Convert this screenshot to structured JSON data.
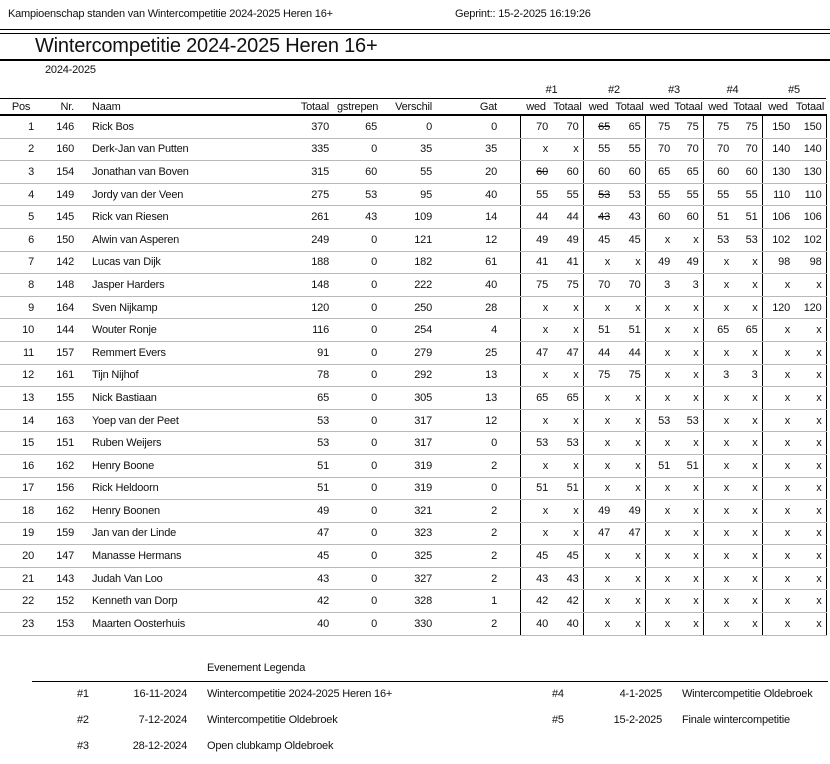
{
  "report_header": {
    "left_text": "Kampioenschap standen van Wintercompetitie 2024-2025 Heren 16+",
    "printed_text": "Geprint:: 15-2-2025 16:19:26"
  },
  "title": "Wintercompetitie 2024-2025 Heren 16+",
  "season": "2024-2025",
  "table": {
    "event_numbers": [
      "#1",
      "#2",
      "#3",
      "#4",
      "#5"
    ],
    "columns": [
      "Pos",
      "Nr.",
      "Naam",
      "Totaal",
      "gstrepen",
      "Verschil",
      "Gat"
    ],
    "event_subcolumns": [
      "wed",
      "Totaal"
    ],
    "rows": [
      {
        "pos": "1",
        "nr": "146",
        "naam": "Rick Bos",
        "totaal": "370",
        "gestrepen": "65",
        "verschil": "0",
        "gat": "0",
        "events": [
          [
            "70",
            "70"
          ],
          [
            "65",
            "65",
            "s"
          ],
          [
            "75",
            "75"
          ],
          [
            "75",
            "75"
          ],
          [
            "150",
            "150"
          ]
        ]
      },
      {
        "pos": "2",
        "nr": "160",
        "naam": "Derk-Jan van Putten",
        "totaal": "335",
        "gestrepen": "0",
        "verschil": "35",
        "gat": "35",
        "events": [
          [
            "x",
            "x"
          ],
          [
            "55",
            "55"
          ],
          [
            "70",
            "70"
          ],
          [
            "70",
            "70"
          ],
          [
            "140",
            "140"
          ]
        ]
      },
      {
        "pos": "3",
        "nr": "154",
        "naam": "Jonathan van Boven",
        "totaal": "315",
        "gestrepen": "60",
        "verschil": "55",
        "gat": "20",
        "events": [
          [
            "60",
            "60",
            "s"
          ],
          [
            "60",
            "60"
          ],
          [
            "65",
            "65"
          ],
          [
            "60",
            "60"
          ],
          [
            "130",
            "130"
          ]
        ]
      },
      {
        "pos": "4",
        "nr": "149",
        "naam": "Jordy van der Veen",
        "totaal": "275",
        "gestrepen": "53",
        "verschil": "95",
        "gat": "40",
        "events": [
          [
            "55",
            "55"
          ],
          [
            "53",
            "53",
            "s"
          ],
          [
            "55",
            "55"
          ],
          [
            "55",
            "55"
          ],
          [
            "110",
            "110"
          ]
        ]
      },
      {
        "pos": "5",
        "nr": "145",
        "naam": "Rick van Riesen",
        "totaal": "261",
        "gestrepen": "43",
        "verschil": "109",
        "gat": "14",
        "events": [
          [
            "44",
            "44"
          ],
          [
            "43",
            "43",
            "s"
          ],
          [
            "60",
            "60"
          ],
          [
            "51",
            "51"
          ],
          [
            "106",
            "106"
          ]
        ]
      },
      {
        "pos": "6",
        "nr": "150",
        "naam": "Alwin van Asperen",
        "totaal": "249",
        "gestrepen": "0",
        "verschil": "121",
        "gat": "12",
        "events": [
          [
            "49",
            "49"
          ],
          [
            "45",
            "45"
          ],
          [
            "x",
            "x"
          ],
          [
            "53",
            "53"
          ],
          [
            "102",
            "102"
          ]
        ]
      },
      {
        "pos": "7",
        "nr": "142",
        "naam": "Lucas van Dijk",
        "totaal": "188",
        "gestrepen": "0",
        "verschil": "182",
        "gat": "61",
        "events": [
          [
            "41",
            "41"
          ],
          [
            "x",
            "x"
          ],
          [
            "49",
            "49"
          ],
          [
            "x",
            "x"
          ],
          [
            "98",
            "98"
          ]
        ]
      },
      {
        "pos": "8",
        "nr": "148",
        "naam": "Jasper Harders",
        "totaal": "148",
        "gestrepen": "0",
        "verschil": "222",
        "gat": "40",
        "events": [
          [
            "75",
            "75"
          ],
          [
            "70",
            "70"
          ],
          [
            "3",
            "3"
          ],
          [
            "x",
            "x"
          ],
          [
            "x",
            "x"
          ]
        ]
      },
      {
        "pos": "9",
        "nr": "164",
        "naam": "Sven Nijkamp",
        "totaal": "120",
        "gestrepen": "0",
        "verschil": "250",
        "gat": "28",
        "events": [
          [
            "x",
            "x"
          ],
          [
            "x",
            "x"
          ],
          [
            "x",
            "x"
          ],
          [
            "x",
            "x"
          ],
          [
            "120",
            "120"
          ]
        ]
      },
      {
        "pos": "10",
        "nr": "144",
        "naam": "Wouter Ronje",
        "totaal": "116",
        "gestrepen": "0",
        "verschil": "254",
        "gat": "4",
        "events": [
          [
            "x",
            "x"
          ],
          [
            "51",
            "51"
          ],
          [
            "x",
            "x"
          ],
          [
            "65",
            "65"
          ],
          [
            "x",
            "x"
          ]
        ]
      },
      {
        "pos": "11",
        "nr": "157",
        "naam": "Remmert Evers",
        "totaal": "91",
        "gestrepen": "0",
        "verschil": "279",
        "gat": "25",
        "events": [
          [
            "47",
            "47"
          ],
          [
            "44",
            "44"
          ],
          [
            "x",
            "x"
          ],
          [
            "x",
            "x"
          ],
          [
            "x",
            "x"
          ]
        ]
      },
      {
        "pos": "12",
        "nr": "161",
        "naam": "Tijn Nijhof",
        "totaal": "78",
        "gestrepen": "0",
        "verschil": "292",
        "gat": "13",
        "events": [
          [
            "x",
            "x"
          ],
          [
            "75",
            "75"
          ],
          [
            "x",
            "x"
          ],
          [
            "3",
            "3"
          ],
          [
            "x",
            "x"
          ]
        ]
      },
      {
        "pos": "13",
        "nr": "155",
        "naam": "Nick Bastiaan",
        "totaal": "65",
        "gestrepen": "0",
        "verschil": "305",
        "gat": "13",
        "events": [
          [
            "65",
            "65"
          ],
          [
            "x",
            "x"
          ],
          [
            "x",
            "x"
          ],
          [
            "x",
            "x"
          ],
          [
            "x",
            "x"
          ]
        ]
      },
      {
        "pos": "14",
        "nr": "163",
        "naam": "Yoep van der Peet",
        "totaal": "53",
        "gestrepen": "0",
        "verschil": "317",
        "gat": "12",
        "events": [
          [
            "x",
            "x"
          ],
          [
            "x",
            "x"
          ],
          [
            "53",
            "53"
          ],
          [
            "x",
            "x"
          ],
          [
            "x",
            "x"
          ]
        ]
      },
      {
        "pos": "15",
        "nr": "151",
        "naam": "Ruben Weijers",
        "totaal": "53",
        "gestrepen": "0",
        "verschil": "317",
        "gat": "0",
        "events": [
          [
            "53",
            "53"
          ],
          [
            "x",
            "x"
          ],
          [
            "x",
            "x"
          ],
          [
            "x",
            "x"
          ],
          [
            "x",
            "x"
          ]
        ]
      },
      {
        "pos": "16",
        "nr": "162",
        "naam": "Henry Boone",
        "totaal": "51",
        "gestrepen": "0",
        "verschil": "319",
        "gat": "2",
        "events": [
          [
            "x",
            "x"
          ],
          [
            "x",
            "x"
          ],
          [
            "51",
            "51"
          ],
          [
            "x",
            "x"
          ],
          [
            "x",
            "x"
          ]
        ]
      },
      {
        "pos": "17",
        "nr": "156",
        "naam": "Rick Heldoorn",
        "totaal": "51",
        "gestrepen": "0",
        "verschil": "319",
        "gat": "0",
        "events": [
          [
            "51",
            "51"
          ],
          [
            "x",
            "x"
          ],
          [
            "x",
            "x"
          ],
          [
            "x",
            "x"
          ],
          [
            "x",
            "x"
          ]
        ]
      },
      {
        "pos": "18",
        "nr": "162",
        "naam": "Henry Boonen",
        "totaal": "49",
        "gestrepen": "0",
        "verschil": "321",
        "gat": "2",
        "events": [
          [
            "x",
            "x"
          ],
          [
            "49",
            "49"
          ],
          [
            "x",
            "x"
          ],
          [
            "x",
            "x"
          ],
          [
            "x",
            "x"
          ]
        ]
      },
      {
        "pos": "19",
        "nr": "159",
        "naam": "Jan van der Linde",
        "totaal": "47",
        "gestrepen": "0",
        "verschil": "323",
        "gat": "2",
        "events": [
          [
            "x",
            "x"
          ],
          [
            "47",
            "47"
          ],
          [
            "x",
            "x"
          ],
          [
            "x",
            "x"
          ],
          [
            "x",
            "x"
          ]
        ]
      },
      {
        "pos": "20",
        "nr": "147",
        "naam": "Manasse Hermans",
        "totaal": "45",
        "gestrepen": "0",
        "verschil": "325",
        "gat": "2",
        "events": [
          [
            "45",
            "45"
          ],
          [
            "x",
            "x"
          ],
          [
            "x",
            "x"
          ],
          [
            "x",
            "x"
          ],
          [
            "x",
            "x"
          ]
        ]
      },
      {
        "pos": "21",
        "nr": "143",
        "naam": "Judah Van Loo",
        "totaal": "43",
        "gestrepen": "0",
        "verschil": "327",
        "gat": "2",
        "events": [
          [
            "43",
            "43"
          ],
          [
            "x",
            "x"
          ],
          [
            "x",
            "x"
          ],
          [
            "x",
            "x"
          ],
          [
            "x",
            "x"
          ]
        ]
      },
      {
        "pos": "22",
        "nr": "152",
        "naam": "Kenneth van Dorp",
        "totaal": "42",
        "gestrepen": "0",
        "verschil": "328",
        "gat": "1",
        "events": [
          [
            "42",
            "42"
          ],
          [
            "x",
            "x"
          ],
          [
            "x",
            "x"
          ],
          [
            "x",
            "x"
          ],
          [
            "x",
            "x"
          ]
        ]
      },
      {
        "pos": "23",
        "nr": "153",
        "naam": "Maarten Oosterhuis",
        "totaal": "40",
        "gestrepen": "0",
        "verschil": "330",
        "gat": "2",
        "events": [
          [
            "40",
            "40"
          ],
          [
            "x",
            "x"
          ],
          [
            "x",
            "x"
          ],
          [
            "x",
            "x"
          ],
          [
            "x",
            "x"
          ]
        ]
      }
    ]
  },
  "legend": {
    "title": "Evenement Legenda",
    "entries": [
      {
        "id": "#1",
        "date": "16-11-2024",
        "name": "Wintercompetitie 2024-2025 Heren 16+"
      },
      {
        "id": "#2",
        "date": "7-12-2024",
        "name": "Wintercompetitie Oldebroek"
      },
      {
        "id": "#3",
        "date": "28-12-2024",
        "name": "Open clubkamp Oldebroek"
      },
      {
        "id": "#4",
        "date": "4-1-2025",
        "name": "Wintercompetitie Oldebroek"
      },
      {
        "id": "#5",
        "date": "15-2-2025",
        "name": "Finale wintercompetitie"
      }
    ]
  }
}
